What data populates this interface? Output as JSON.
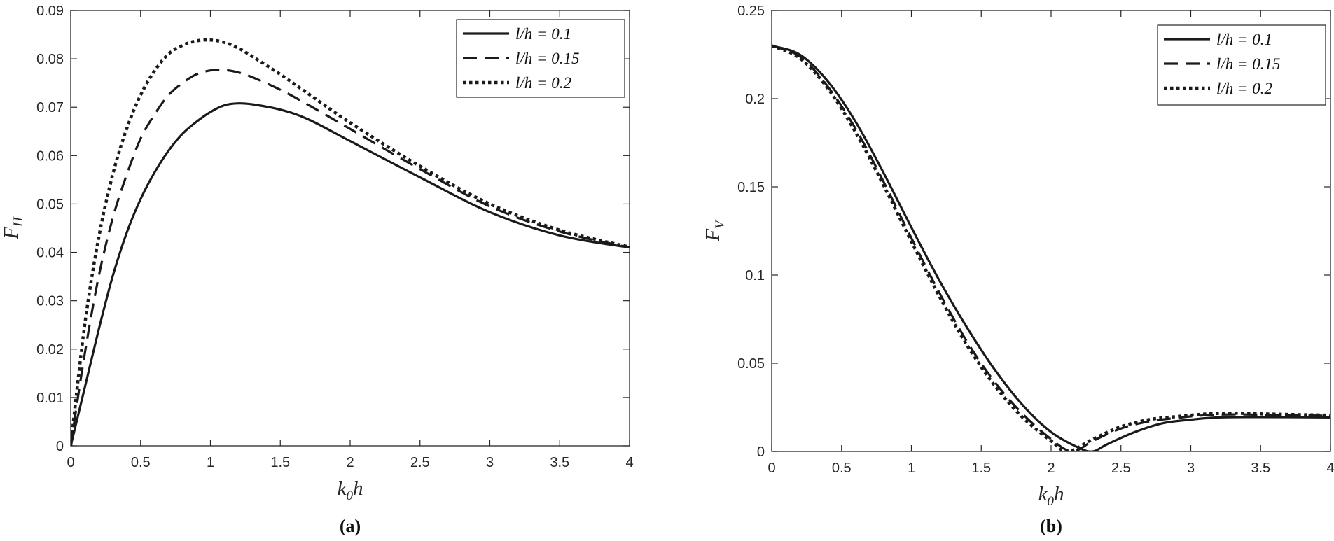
{
  "chart_data": [
    {
      "type": "line",
      "caption": "(a)",
      "xlabel": {
        "base": "k",
        "sub": "0",
        "rest": "h"
      },
      "ylabel": {
        "base": "F",
        "sub": "H"
      },
      "xlim": [
        0,
        4
      ],
      "ylim": [
        0,
        0.09
      ],
      "xticks": [
        "0",
        "0.5",
        "1",
        "1.5",
        "2",
        "2.5",
        "3",
        "3.5",
        "4"
      ],
      "yticks": [
        "0",
        "0.01",
        "0.02",
        "0.03",
        "0.04",
        "0.05",
        "0.06",
        "0.07",
        "0.08",
        "0.09"
      ],
      "grid": false,
      "legend": "top-right",
      "series": [
        {
          "name": "l/h = 0.1",
          "style": "solid",
          "x": [
            0,
            0.1,
            0.2,
            0.3,
            0.4,
            0.5,
            0.6,
            0.7,
            0.8,
            0.9,
            1.0,
            1.1,
            1.2,
            1.3,
            1.5,
            1.7,
            2.0,
            2.5,
            3.0,
            3.5,
            4.0
          ],
          "y": [
            0,
            0.012,
            0.024,
            0.035,
            0.044,
            0.051,
            0.0565,
            0.061,
            0.0645,
            0.067,
            0.069,
            0.0704,
            0.0708,
            0.0706,
            0.0695,
            0.0675,
            0.063,
            0.0555,
            0.0483,
            0.0435,
            0.041
          ]
        },
        {
          "name": "l/h = 0.15",
          "style": "dashed",
          "x": [
            0,
            0.1,
            0.2,
            0.3,
            0.4,
            0.5,
            0.6,
            0.7,
            0.8,
            0.9,
            1.0,
            1.1,
            1.2,
            1.3,
            1.5,
            1.7,
            2.0,
            2.5,
            3.0,
            3.5,
            4.0
          ],
          "y": [
            0,
            0.019,
            0.035,
            0.047,
            0.056,
            0.0635,
            0.0685,
            0.0725,
            0.075,
            0.0768,
            0.0776,
            0.0777,
            0.0772,
            0.0762,
            0.0736,
            0.0705,
            0.0655,
            0.0572,
            0.0495,
            0.0443,
            0.041
          ]
        },
        {
          "name": "l/h = 0.2",
          "style": "dotted",
          "x": [
            0,
            0.1,
            0.2,
            0.3,
            0.4,
            0.5,
            0.6,
            0.7,
            0.8,
            0.9,
            1.0,
            1.1,
            1.2,
            1.3,
            1.5,
            1.7,
            2.0,
            2.5,
            3.0,
            3.5,
            4.0
          ],
          "y": [
            0,
            0.025,
            0.043,
            0.056,
            0.0655,
            0.0725,
            0.0775,
            0.081,
            0.0828,
            0.0837,
            0.0839,
            0.0834,
            0.0822,
            0.0805,
            0.0768,
            0.0728,
            0.0668,
            0.0578,
            0.05,
            0.0446,
            0.0411
          ]
        }
      ]
    },
    {
      "type": "line",
      "caption": "(b)",
      "xlabel": {
        "base": "k",
        "sub": "0",
        "rest": "h"
      },
      "ylabel": {
        "base": "F",
        "sub": "V"
      },
      "xlim": [
        0,
        4
      ],
      "ylim": [
        0,
        0.25
      ],
      "xticks": [
        "0",
        "0.5",
        "1",
        "1.5",
        "2",
        "2.5",
        "3",
        "3.5",
        "4"
      ],
      "yticks": [
        "0",
        "0.05",
        "0.1",
        "0.15",
        "0.2",
        "0.25"
      ],
      "grid": false,
      "legend": "top-right",
      "series": [
        {
          "name": "l/h = 0.1",
          "style": "solid",
          "x": [
            0,
            0.2,
            0.4,
            0.6,
            0.8,
            1.0,
            1.2,
            1.4,
            1.6,
            1.8,
            2.0,
            2.2,
            2.3,
            2.4,
            2.6,
            2.8,
            3.0,
            3.2,
            3.5,
            4.0
          ],
          "y": [
            0.23,
            0.225,
            0.21,
            0.187,
            0.158,
            0.127,
            0.097,
            0.07,
            0.046,
            0.026,
            0.011,
            0.002,
            0.0,
            0.004,
            0.011,
            0.016,
            0.018,
            0.0193,
            0.0195,
            0.0193
          ]
        },
        {
          "name": "l/h = 0.15",
          "style": "dashed",
          "x": [
            0,
            0.2,
            0.4,
            0.6,
            0.8,
            1.0,
            1.2,
            1.4,
            1.6,
            1.8,
            2.0,
            2.15,
            2.3,
            2.5,
            2.7,
            2.9,
            3.1,
            3.3,
            3.5,
            4.0
          ],
          "y": [
            0.23,
            0.224,
            0.207,
            0.183,
            0.153,
            0.121,
            0.09,
            0.062,
            0.039,
            0.021,
            0.007,
            0.0,
            0.006,
            0.013,
            0.017,
            0.019,
            0.0205,
            0.021,
            0.0208,
            0.0202
          ]
        },
        {
          "name": "l/h = 0.2",
          "style": "dotted",
          "x": [
            0,
            0.2,
            0.4,
            0.6,
            0.8,
            1.0,
            1.2,
            1.4,
            1.6,
            1.8,
            2.0,
            2.12,
            2.3,
            2.5,
            2.7,
            2.9,
            3.1,
            3.3,
            3.5,
            4.0
          ],
          "y": [
            0.23,
            0.223,
            0.206,
            0.181,
            0.151,
            0.119,
            0.088,
            0.06,
            0.037,
            0.019,
            0.006,
            0.0,
            0.007,
            0.014,
            0.018,
            0.0198,
            0.0212,
            0.0217,
            0.0213,
            0.0205
          ]
        }
      ]
    }
  ]
}
